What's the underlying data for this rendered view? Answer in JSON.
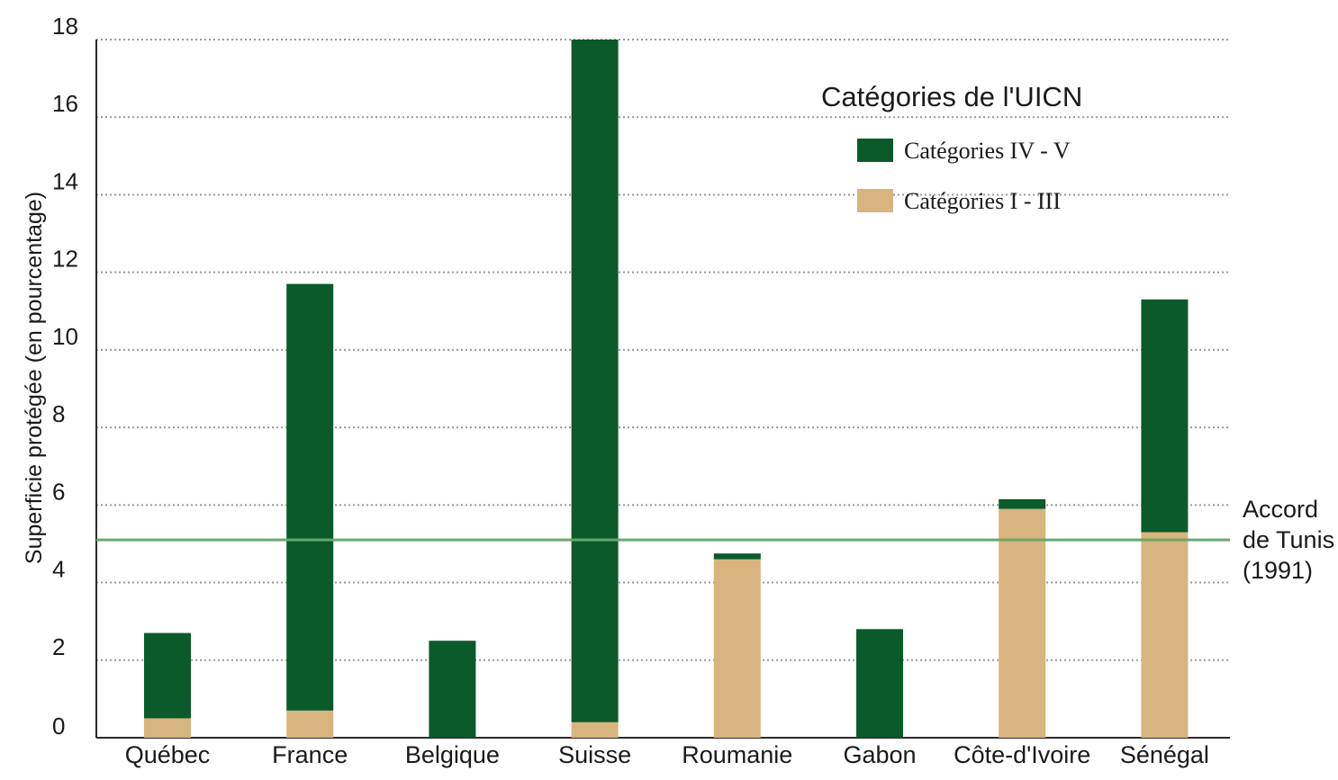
{
  "chart_data": {
    "type": "bar",
    "stacked": true,
    "categories": [
      "Québec",
      "France",
      "Belgique",
      "Suisse",
      "Roumanie",
      "Gabon",
      "Côte-d'Ivoire",
      "Sénégal"
    ],
    "series": [
      {
        "name": "Catégories I - III",
        "color": "#d8b47e",
        "values": [
          0.5,
          0.7,
          0,
          0.4,
          4.6,
          0,
          5.9,
          5.3
        ]
      },
      {
        "name": "Catégories IV - V",
        "color": "#0a5a2a",
        "values": [
          2.2,
          11.0,
          2.5,
          17.6,
          0.15,
          2.8,
          0.25,
          6.0
        ]
      }
    ],
    "ylabel": "Superficie protégée (en pourcentage)",
    "xlabel": "",
    "ylim": [
      0,
      18
    ],
    "yticks": [
      0,
      2,
      4,
      6,
      8,
      10,
      12,
      14,
      16,
      18
    ],
    "grid": "dotted horizontal",
    "legend": {
      "title": "Catégories de l'UICN",
      "placement": "top-right",
      "entries": [
        "Catégories IV - V",
        "Catégories I - III"
      ]
    },
    "reference_line": {
      "value": 5.1,
      "color": "#6aa86a",
      "label_lines": [
        "Accord",
        "de Tunis",
        "(1991)"
      ]
    }
  }
}
